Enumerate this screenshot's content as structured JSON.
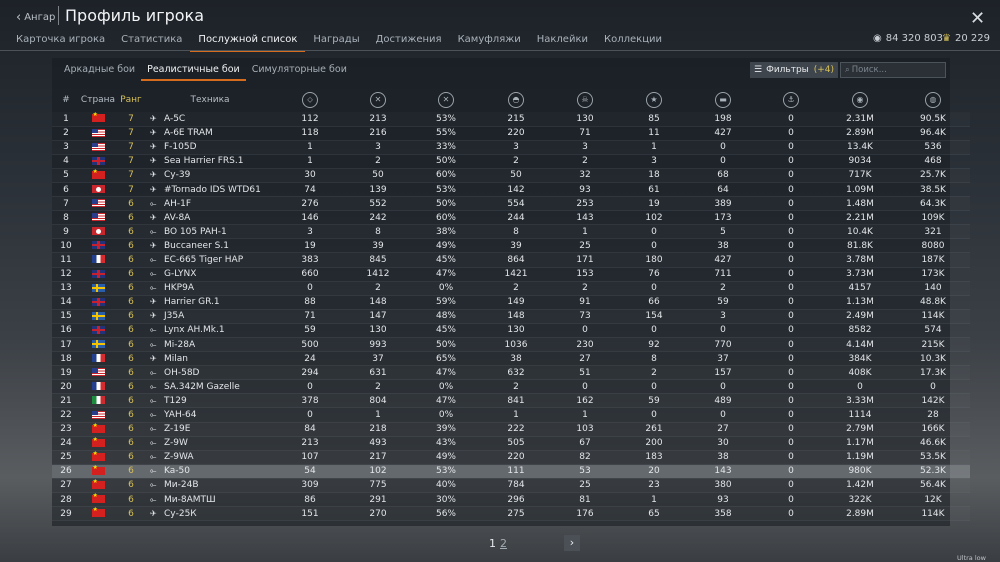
{
  "header": {
    "back_label": "Ангар",
    "title": "Профиль игрока",
    "tabs": [
      "Карточка игрока",
      "Статистика",
      "Послужной список",
      "Награды",
      "Достижения",
      "Камуфляжи",
      "Наклейки",
      "Коллекции"
    ],
    "active_tab": 2,
    "silver_lions": "84 320 803",
    "research_points": "20 229"
  },
  "subtabs": {
    "items": [
      "Аркадные бои",
      "Реалистичные бои",
      "Симуляторные бои"
    ],
    "active": 1
  },
  "filters": {
    "label": "Фильтры",
    "badge": "(+4)",
    "search_placeholder": "Поиск..."
  },
  "table": {
    "headers": {
      "num": "#",
      "country": "Страна",
      "rank": "Ранг",
      "vehicle": "Техника"
    },
    "stat_icons": [
      "battles-icon",
      "victories-icon",
      "win-rate-icon",
      "respawns-icon",
      "deaths-icon",
      "air-kills-icon",
      "ground-kills-icon",
      "naval-kills-icon",
      "silver-lions-icon",
      "research-points-icon"
    ],
    "rows": [
      {
        "n": "1",
        "flag": "cn",
        "rank": "7",
        "type": "jet",
        "name": "A-5C",
        "s": [
          "112",
          "213",
          "53%",
          "215",
          "130",
          "85",
          "198",
          "0",
          "2.31M",
          "90.5K"
        ]
      },
      {
        "n": "2",
        "flag": "us",
        "rank": "7",
        "type": "jet",
        "name": "A-6E TRAM",
        "s": [
          "118",
          "216",
          "55%",
          "220",
          "71",
          "11",
          "427",
          "0",
          "2.89M",
          "96.4K"
        ]
      },
      {
        "n": "3",
        "flag": "us",
        "rank": "7",
        "type": "jet",
        "name": "F-105D",
        "s": [
          "1",
          "3",
          "33%",
          "3",
          "3",
          "1",
          "0",
          "0",
          "13.4K",
          "536"
        ]
      },
      {
        "n": "4",
        "flag": "gb",
        "rank": "7",
        "type": "jet",
        "name": "Sea Harrier FRS.1",
        "s": [
          "1",
          "2",
          "50%",
          "2",
          "2",
          "3",
          "0",
          "0",
          "9034",
          "468"
        ]
      },
      {
        "n": "5",
        "flag": "cn",
        "rank": "7",
        "type": "jet",
        "name": "Су-39",
        "s": [
          "30",
          "50",
          "60%",
          "50",
          "32",
          "18",
          "68",
          "0",
          "717K",
          "25.7K"
        ]
      },
      {
        "n": "6",
        "flag": "jp",
        "rank": "7",
        "type": "jet",
        "name": "#Tornado IDS WTD61",
        "s": [
          "74",
          "139",
          "53%",
          "142",
          "93",
          "61",
          "64",
          "0",
          "1.09M",
          "38.5K"
        ]
      },
      {
        "n": "7",
        "flag": "us",
        "rank": "6",
        "type": "heli",
        "name": "AH-1F",
        "s": [
          "276",
          "552",
          "50%",
          "554",
          "253",
          "19",
          "389",
          "0",
          "1.48M",
          "64.3K"
        ]
      },
      {
        "n": "8",
        "flag": "us",
        "rank": "6",
        "type": "jet",
        "name": "AV-8A",
        "s": [
          "146",
          "242",
          "60%",
          "244",
          "143",
          "102",
          "173",
          "0",
          "2.21M",
          "109K"
        ]
      },
      {
        "n": "9",
        "flag": "jp",
        "rank": "6",
        "type": "heli",
        "name": "BO 105 PAH-1",
        "s": [
          "3",
          "8",
          "38%",
          "8",
          "1",
          "0",
          "5",
          "0",
          "10.4K",
          "321"
        ]
      },
      {
        "n": "10",
        "flag": "gb",
        "rank": "6",
        "type": "jet",
        "name": "Buccaneer S.1",
        "s": [
          "19",
          "39",
          "49%",
          "39",
          "25",
          "0",
          "38",
          "0",
          "81.8K",
          "8080"
        ]
      },
      {
        "n": "11",
        "flag": "fr",
        "rank": "6",
        "type": "heli",
        "name": "EC-665 Tiger HAP",
        "s": [
          "383",
          "845",
          "45%",
          "864",
          "171",
          "180",
          "427",
          "0",
          "3.78M",
          "187K"
        ]
      },
      {
        "n": "12",
        "flag": "gb",
        "rank": "6",
        "type": "heli",
        "name": "G-LYNX",
        "s": [
          "660",
          "1412",
          "47%",
          "1421",
          "153",
          "76",
          "711",
          "0",
          "3.73M",
          "173K"
        ]
      },
      {
        "n": "13",
        "flag": "se",
        "rank": "6",
        "type": "heli",
        "name": "HKP9A",
        "s": [
          "0",
          "2",
          "0%",
          "2",
          "2",
          "0",
          "2",
          "0",
          "4157",
          "140"
        ]
      },
      {
        "n": "14",
        "flag": "gb",
        "rank": "6",
        "type": "jet",
        "name": "Harrier GR.1",
        "s": [
          "88",
          "148",
          "59%",
          "149",
          "91",
          "66",
          "59",
          "0",
          "1.13M",
          "48.8K"
        ]
      },
      {
        "n": "15",
        "flag": "se",
        "rank": "6",
        "type": "jet",
        "name": "J35A",
        "s": [
          "71",
          "147",
          "48%",
          "148",
          "73",
          "154",
          "3",
          "0",
          "2.49M",
          "114K"
        ]
      },
      {
        "n": "16",
        "flag": "gb",
        "rank": "6",
        "type": "heli",
        "name": "Lynx AH.Mk.1",
        "s": [
          "59",
          "130",
          "45%",
          "130",
          "0",
          "0",
          "0",
          "0",
          "8582",
          "574"
        ]
      },
      {
        "n": "17",
        "flag": "se",
        "rank": "6",
        "type": "heli",
        "name": "Mi-28A",
        "s": [
          "500",
          "993",
          "50%",
          "1036",
          "230",
          "92",
          "770",
          "0",
          "4.14M",
          "215K"
        ]
      },
      {
        "n": "18",
        "flag": "fr",
        "rank": "6",
        "type": "jet",
        "name": "Milan",
        "s": [
          "24",
          "37",
          "65%",
          "38",
          "27",
          "8",
          "37",
          "0",
          "384K",
          "10.3K"
        ]
      },
      {
        "n": "19",
        "flag": "us",
        "rank": "6",
        "type": "heli",
        "name": "OH-58D",
        "s": [
          "294",
          "631",
          "47%",
          "632",
          "51",
          "2",
          "157",
          "0",
          "408K",
          "17.3K"
        ]
      },
      {
        "n": "20",
        "flag": "fr",
        "rank": "6",
        "type": "heli",
        "name": "SA.342M Gazelle",
        "s": [
          "0",
          "2",
          "0%",
          "2",
          "0",
          "0",
          "0",
          "0",
          "0",
          "0"
        ]
      },
      {
        "n": "21",
        "flag": "it",
        "rank": "6",
        "type": "heli",
        "name": "T129",
        "s": [
          "378",
          "804",
          "47%",
          "841",
          "162",
          "59",
          "489",
          "0",
          "3.33M",
          "142K"
        ]
      },
      {
        "n": "22",
        "flag": "us",
        "rank": "6",
        "type": "heli",
        "name": "YAH-64",
        "s": [
          "0",
          "1",
          "0%",
          "1",
          "1",
          "0",
          "0",
          "0",
          "1114",
          "28"
        ]
      },
      {
        "n": "23",
        "flag": "cn",
        "rank": "6",
        "type": "heli",
        "name": "Z-19E",
        "s": [
          "84",
          "218",
          "39%",
          "222",
          "103",
          "261",
          "27",
          "0",
          "2.79M",
          "166K"
        ]
      },
      {
        "n": "24",
        "flag": "cn",
        "rank": "6",
        "type": "heli",
        "name": "Z-9W",
        "s": [
          "213",
          "493",
          "43%",
          "505",
          "67",
          "200",
          "30",
          "0",
          "1.17M",
          "46.6K"
        ]
      },
      {
        "n": "25",
        "flag": "cn",
        "rank": "6",
        "type": "heli",
        "name": "Z-9WA",
        "s": [
          "107",
          "217",
          "49%",
          "220",
          "82",
          "183",
          "38",
          "0",
          "1.19M",
          "53.5K"
        ]
      },
      {
        "n": "26",
        "flag": "cn",
        "rank": "6",
        "type": "heli",
        "name": "Ka-50",
        "s": [
          "54",
          "102",
          "53%",
          "111",
          "53",
          "20",
          "143",
          "0",
          "980K",
          "52.3K"
        ]
      },
      {
        "n": "27",
        "flag": "cn",
        "rank": "6",
        "type": "heli",
        "name": "Ми-24В",
        "s": [
          "309",
          "775",
          "40%",
          "784",
          "25",
          "23",
          "380",
          "0",
          "1.42M",
          "56.4K"
        ]
      },
      {
        "n": "28",
        "flag": "cn",
        "rank": "6",
        "type": "heli",
        "name": "Ми-8АМТШ",
        "s": [
          "86",
          "291",
          "30%",
          "296",
          "81",
          "1",
          "93",
          "0",
          "322K",
          "12K"
        ]
      },
      {
        "n": "29",
        "flag": "cn",
        "rank": "6",
        "type": "jet",
        "name": "Су-25К",
        "s": [
          "151",
          "270",
          "56%",
          "275",
          "176",
          "65",
          "358",
          "0",
          "2.89M",
          "114K"
        ]
      }
    ],
    "highlighted_row": 25
  },
  "pager": {
    "page1": "1",
    "page2": "2",
    "next": "›"
  },
  "quality_label": "Ultra low quality"
}
